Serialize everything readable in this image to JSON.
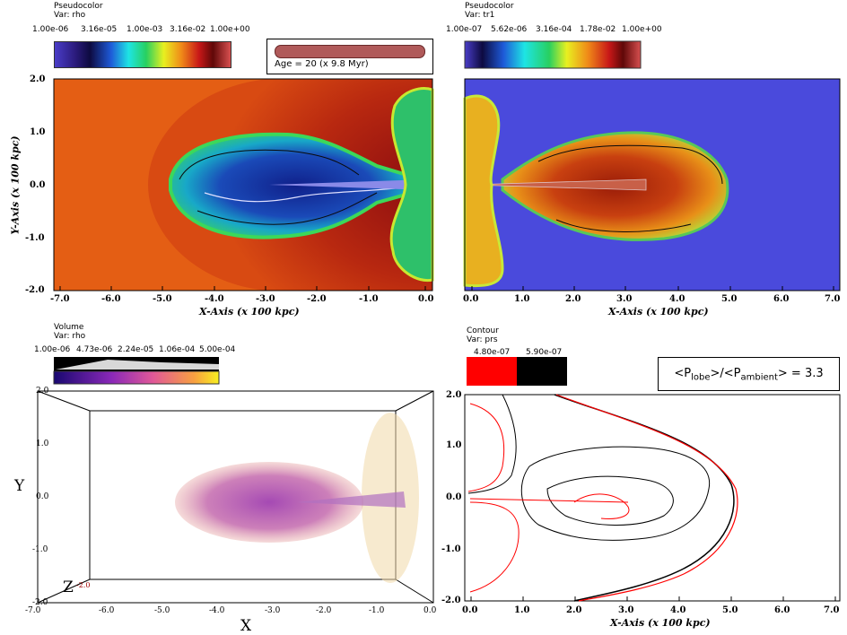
{
  "panels": {
    "top_left": {
      "plot_type": "Pseudocolor",
      "var_line": "Var: rho",
      "colorbar_ticks": [
        "1.00e-06",
        "3.16e-05",
        "1.00e-03",
        "3.16e-02",
        "1.00e+00"
      ],
      "x_ticks": [
        "-7.0",
        "-6.0",
        "-5.0",
        "-4.0",
        "-3.0",
        "-2.0",
        "-1.0",
        "0.0"
      ],
      "y_ticks": [
        "2.0",
        "1.0",
        "0.0",
        "-1.0",
        "-2.0"
      ],
      "x_title": "X-Axis (x 100 kpc)",
      "y_title": "Y-Axis (x 100 kpc)"
    },
    "age_box": {
      "label": "Age = 20 (x 9.8 Myr)"
    },
    "top_right": {
      "plot_type": "Pseudocolor",
      "var_line": "Var: tr1",
      "colorbar_ticks": [
        "1.00e-07",
        "5.62e-06",
        "3.16e-04",
        "1.78e-02",
        "1.00e+00"
      ],
      "x_ticks": [
        "0.0",
        "1.0",
        "2.0",
        "3.0",
        "4.0",
        "5.0",
        "6.0",
        "7.0"
      ],
      "x_title": "X-Axis (x 100 kpc)"
    },
    "bottom_left": {
      "plot_type": "Volume",
      "var_line": "Var: rho",
      "colorbar_ticks": [
        "1.00e-06",
        "4.73e-06",
        "2.24e-05",
        "1.06e-04",
        "5.00e-04"
      ],
      "x_ticks": [
        "-7.0",
        "-6.0",
        "-5.0",
        "-4.0",
        "-3.0",
        "-2.0",
        "-1.0",
        "0.0"
      ],
      "y_ticks": [
        "2.0",
        "1.0",
        "0.0",
        "-1.0",
        "-2.0"
      ],
      "z_tick": "-2.0",
      "x_title": "X",
      "y_title": "Y",
      "z_title": "Z"
    },
    "bottom_right": {
      "plot_type": "Contour",
      "var_line": "Var: prs",
      "contour_levels": [
        "4.80e-07",
        "5.90e-07"
      ],
      "level_colors": [
        "#ff0000",
        "#000000"
      ],
      "ratio_main": "<P",
      "ratio_sub1": "lobe",
      "ratio_mid": ">/<P",
      "ratio_sub2": "ambient",
      "ratio_tail": "> = 3.3",
      "x_ticks": [
        "0.0",
        "1.0",
        "2.0",
        "3.0",
        "4.0",
        "5.0",
        "6.0",
        "7.0"
      ],
      "y_ticks": [
        "2.0",
        "1.0",
        "0.0",
        "-1.0",
        "-2.0"
      ],
      "x_title": "X-Axis (x 100 kpc)"
    }
  },
  "chart_data": [
    {
      "type": "heatmap",
      "title": "Pseudocolor Var: rho",
      "xlabel": "X-Axis (x 100 kpc)",
      "ylabel": "Y-Axis (x 100 kpc)",
      "xlim": [
        -7.3,
        0.1
      ],
      "ylim": [
        -2.0,
        2.0
      ],
      "scale": "log",
      "colorbar_range": [
        1e-06,
        1.0
      ],
      "annotation": "Age = 20 (x 9.8 Myr)"
    },
    {
      "type": "heatmap",
      "title": "Pseudocolor Var: tr1",
      "xlabel": "X-Axis (x 100 kpc)",
      "ylabel": "",
      "xlim": [
        -0.1,
        7.1
      ],
      "ylim": [
        -2.0,
        2.0
      ],
      "scale": "log",
      "colorbar_range": [
        1e-07,
        1.0
      ]
    },
    {
      "type": "heatmap",
      "title": "Volume Var: rho",
      "xlabel": "X",
      "ylabel": "Y",
      "xlim": [
        -7.0,
        0.0
      ],
      "ylim": [
        -2.0,
        2.0
      ],
      "colorbar_range": [
        1e-06,
        0.0005
      ]
    },
    {
      "type": "line",
      "title": "Contour Var: prs",
      "xlabel": "X-Axis (x 100 kpc)",
      "ylabel": "",
      "xlim": [
        -0.1,
        7.1
      ],
      "ylim": [
        -2.0,
        2.0
      ],
      "series": [
        {
          "name": "4.80e-07",
          "color": "#ff0000"
        },
        {
          "name": "5.90e-07",
          "color": "#000000"
        }
      ],
      "annotation": "<Plobe>/<Pambient> = 3.3"
    }
  ]
}
